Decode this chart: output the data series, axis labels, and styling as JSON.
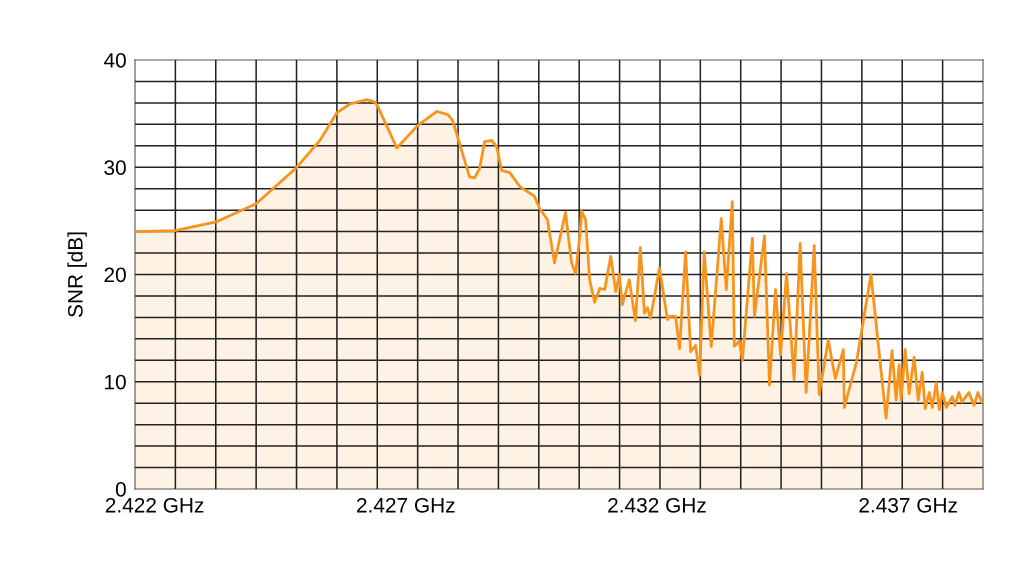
{
  "chart_data": {
    "type": "area",
    "ylabel": "SNR [dB]",
    "xlim": [
      2.42161,
      2.43849
    ],
    "ylim": [
      0,
      40
    ],
    "xticks": [
      {
        "value": 2.422,
        "label": "2.422 GHz"
      },
      {
        "value": 2.427,
        "label": "2.427 GHz"
      },
      {
        "value": 2.432,
        "label": "2.432 GHz"
      },
      {
        "value": 2.437,
        "label": "2.437 GHz"
      }
    ],
    "yticks": [
      0,
      10,
      20,
      30,
      40
    ],
    "grid": true,
    "marker": "none",
    "line_style": "solid",
    "series": [
      {
        "color": "#f7941d",
        "x": [
          2.42161,
          2.42241,
          2.42322,
          2.42402,
          2.42481,
          2.42529,
          2.42563,
          2.42589,
          2.42622,
          2.42638,
          2.42644,
          2.42682,
          2.42724,
          2.42762,
          2.42784,
          2.42793,
          2.42811,
          2.42827,
          2.42837,
          2.42847,
          2.42857,
          2.42871,
          2.42881,
          2.42891,
          2.42907,
          2.42927,
          2.42956,
          2.42966,
          2.42982,
          2.42996,
          2.43018,
          2.4303,
          2.43038,
          2.43046,
          2.4305,
          2.43058,
          2.43066,
          2.43076,
          2.43086,
          2.43096,
          2.43108,
          2.43118,
          2.43125,
          2.43131,
          2.43145,
          2.43157,
          2.43167,
          2.43175,
          2.43181,
          2.43187,
          2.43205,
          2.43221,
          2.43225,
          2.43237,
          2.43245,
          2.43257,
          2.43267,
          2.43277,
          2.43285,
          2.43294,
          2.43308,
          2.43328,
          2.43338,
          2.4335,
          2.43354,
          2.43364,
          2.4337,
          2.4339,
          2.43394,
          2.43414,
          2.43424,
          2.43436,
          2.43446,
          2.43458,
          2.43473,
          2.43485,
          2.43497,
          2.43513,
          2.43523,
          2.43541,
          2.43555,
          2.43571,
          2.43573,
          2.43597,
          2.43626,
          2.43656,
          2.43668,
          2.43676,
          2.43682,
          2.43686,
          2.43694,
          2.43702,
          2.43712,
          2.4372,
          2.43728,
          2.43734,
          2.43742,
          2.43748,
          2.43756,
          2.43762,
          2.43768,
          2.43776,
          2.43788,
          2.43793,
          2.43801,
          2.43807,
          2.43821,
          2.43831,
          2.43839,
          2.43847
        ],
        "values": [
          24.0,
          24.1,
          24.9,
          26.6,
          29.9,
          32.5,
          35.1,
          35.9,
          36.3,
          36.1,
          35.7,
          31.8,
          33.9,
          35.2,
          34.9,
          34.4,
          31.6,
          29.1,
          29.0,
          29.9,
          32.4,
          32.5,
          31.9,
          29.7,
          29.5,
          28.2,
          27.3,
          26.2,
          25.1,
          21.1,
          25.8,
          21.1,
          20.1,
          23.4,
          25.9,
          25.1,
          19.5,
          17.4,
          18.7,
          18.6,
          21.7,
          18.4,
          20.0,
          17.2,
          19.5,
          15.7,
          22.5,
          16.4,
          16.9,
          15.9,
          20.6,
          15.8,
          16.1,
          16.1,
          13.1,
          22.1,
          12.8,
          13.4,
          10.6,
          22.1,
          13.3,
          25.2,
          18.6,
          26.8,
          13.3,
          13.8,
          12.0,
          23.4,
          16.1,
          23.6,
          9.7,
          18.6,
          12.5,
          20.1,
          10.2,
          22.9,
          9.0,
          22.7,
          8.8,
          13.9,
          10.3,
          13.0,
          7.6,
          11.8,
          20.0,
          6.6,
          12.9,
          8.3,
          11.6,
          8.3,
          13.0,
          8.9,
          12.3,
          8.3,
          10.9,
          7.5,
          9.0,
          7.6,
          9.9,
          7.4,
          9.0,
          7.6,
          8.6,
          7.8,
          9.0,
          8.1,
          9.0,
          7.8,
          9.0,
          8.1
        ]
      }
    ]
  }
}
